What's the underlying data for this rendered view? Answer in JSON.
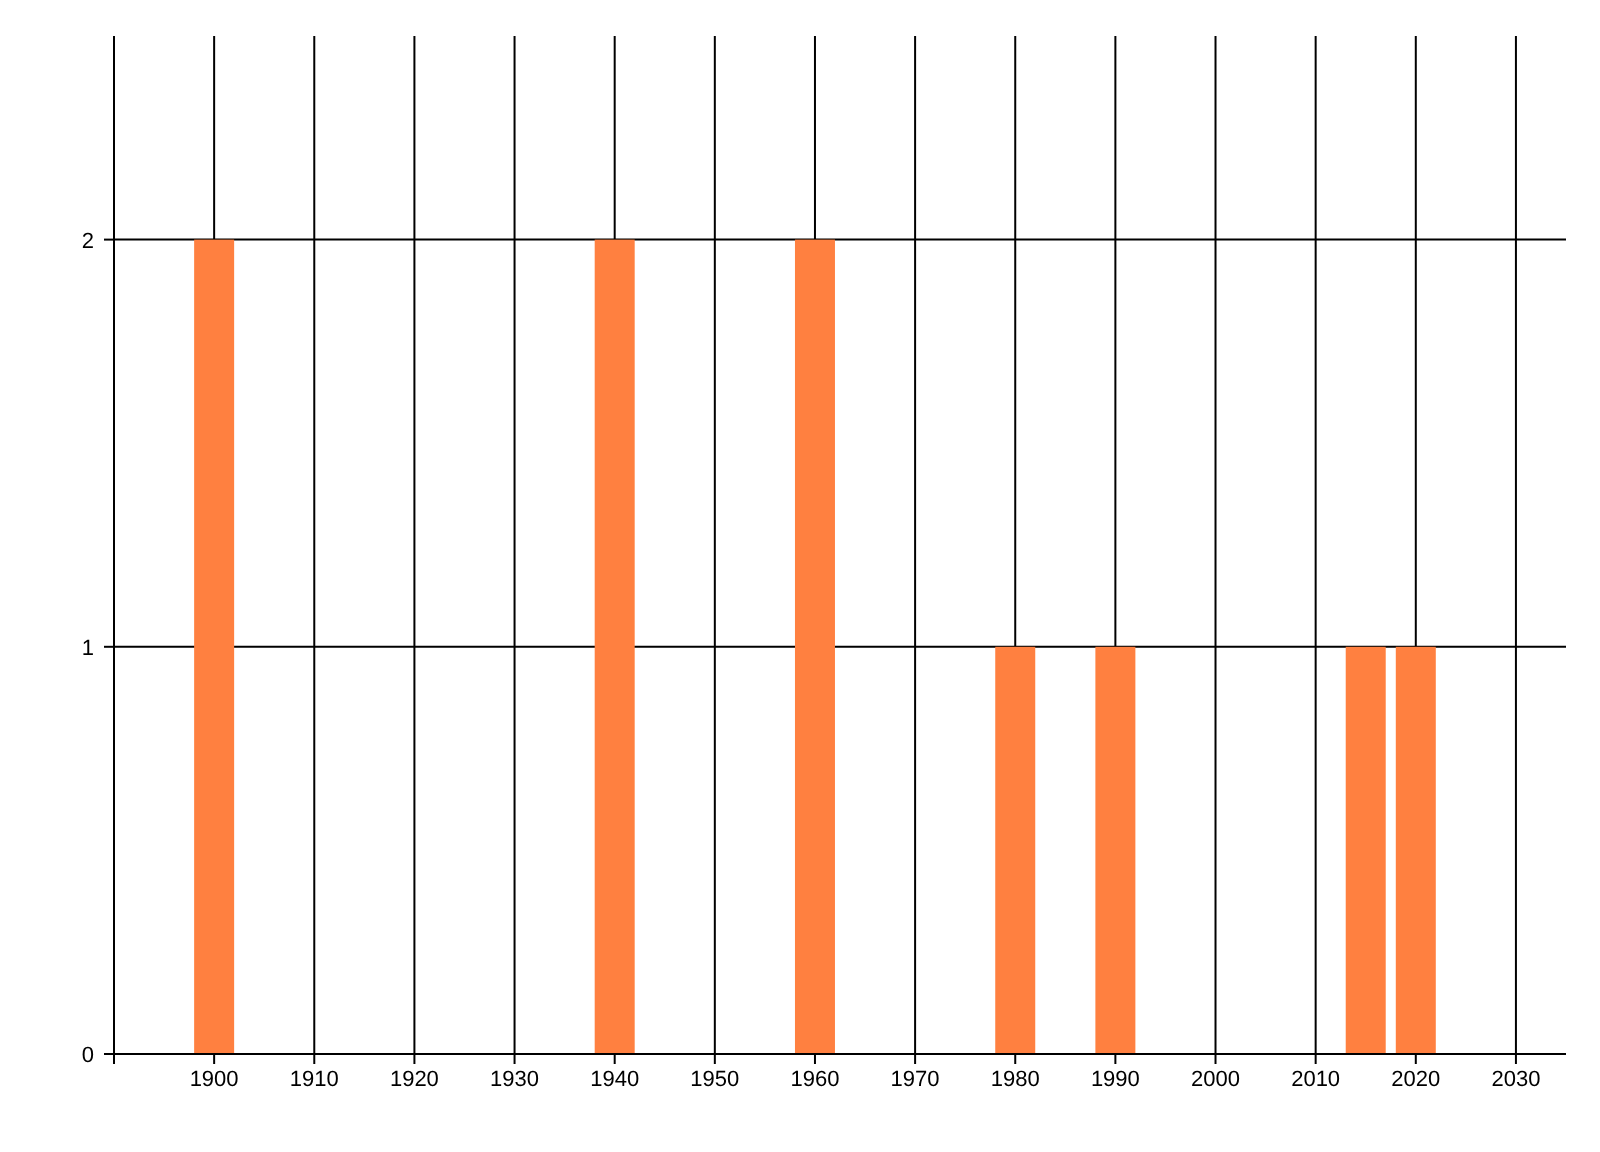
{
  "chart_data": {
    "type": "bar",
    "x": [
      1900,
      1940,
      1960,
      1980,
      1990,
      2015,
      2020
    ],
    "values": [
      2,
      2,
      2,
      1,
      1,
      1,
      1
    ],
    "color": "#ff8040",
    "xlim": [
      1890,
      2035
    ],
    "xticks": [
      {
        "value": 1890,
        "label": null
      },
      1900,
      1910,
      1920,
      1930,
      1940,
      1950,
      1960,
      1970,
      1980,
      1990,
      2000,
      2010,
      2020,
      2030
    ],
    "ylim": [
      0,
      2.5
    ],
    "yticks": [
      0,
      1,
      2
    ],
    "grid": true
  }
}
